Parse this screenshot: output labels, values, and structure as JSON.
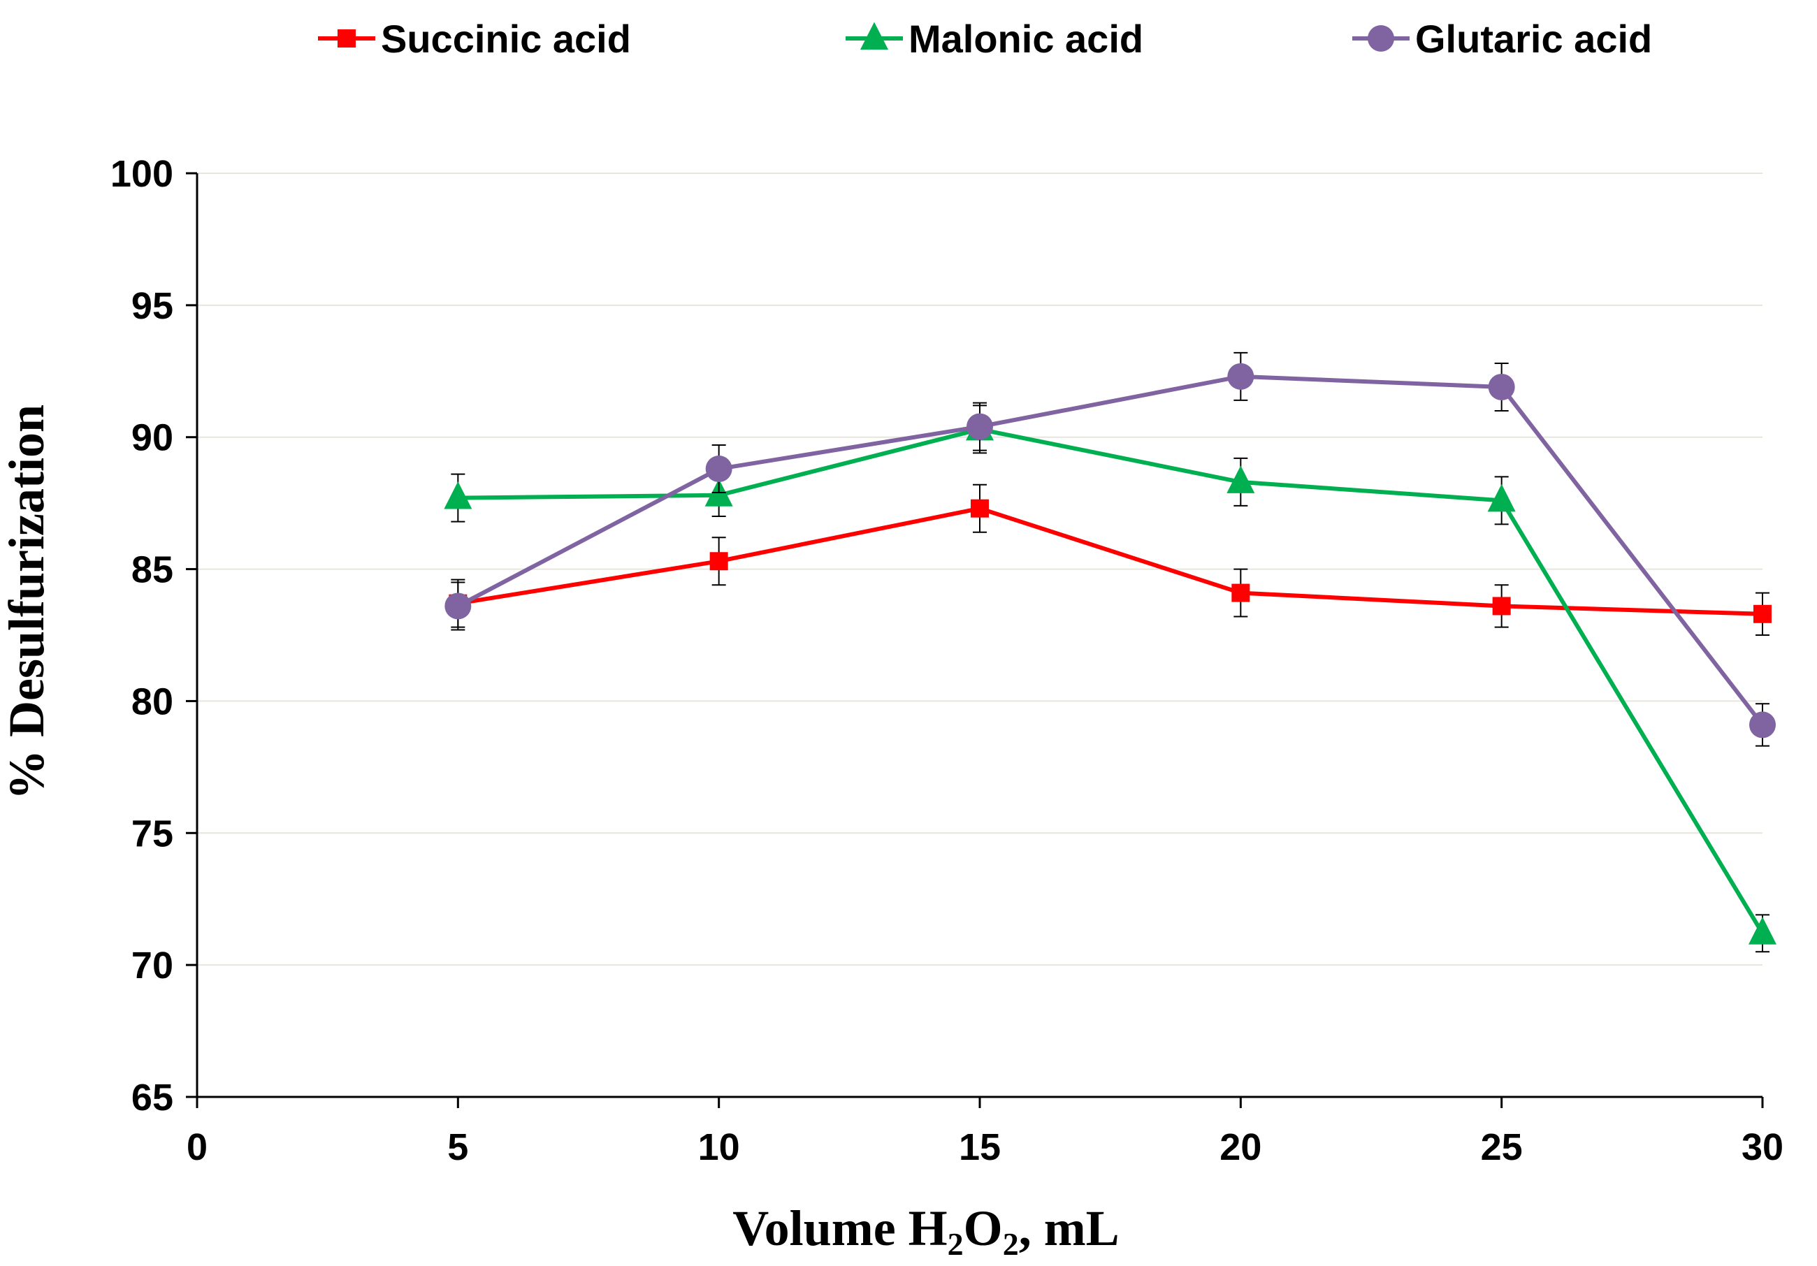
{
  "chart_data": {
    "type": "line",
    "xlabel_parts": {
      "prefix": "Volume H",
      "sub1": "2",
      "mid": "O",
      "sub2": "2",
      "suffix": ", mL"
    },
    "ylabel": "% Desulfurization",
    "xlim": [
      0,
      30
    ],
    "ylim": [
      65,
      100
    ],
    "x_ticks": [
      "0",
      "5",
      "10",
      "15",
      "20",
      "25",
      "30"
    ],
    "y_ticks": [
      "65",
      "70",
      "75",
      "80",
      "85",
      "90",
      "95",
      "100"
    ],
    "grid": "horizontal",
    "legend_position": "top",
    "x": [
      5,
      10,
      15,
      20,
      25,
      30
    ],
    "series": [
      {
        "name": "Succinic acid",
        "color": "#ff0000",
        "marker": "square",
        "values": [
          83.7,
          85.3,
          87.3,
          84.1,
          83.6,
          83.3
        ],
        "error": [
          0.9,
          0.9,
          0.9,
          0.9,
          0.8,
          0.8
        ]
      },
      {
        "name": "Malonic acid",
        "color": "#00b050",
        "marker": "triangle",
        "values": [
          87.7,
          87.8,
          90.3,
          88.3,
          87.6,
          71.2
        ],
        "error": [
          0.9,
          0.8,
          0.9,
          0.9,
          0.9,
          0.7
        ]
      },
      {
        "name": "Glutaric acid",
        "color": "#8064a2",
        "marker": "circle",
        "values": [
          83.6,
          88.8,
          90.4,
          92.3,
          91.9,
          79.1
        ],
        "error": [
          0.9,
          0.9,
          0.9,
          0.9,
          0.9,
          0.8
        ]
      }
    ]
  }
}
